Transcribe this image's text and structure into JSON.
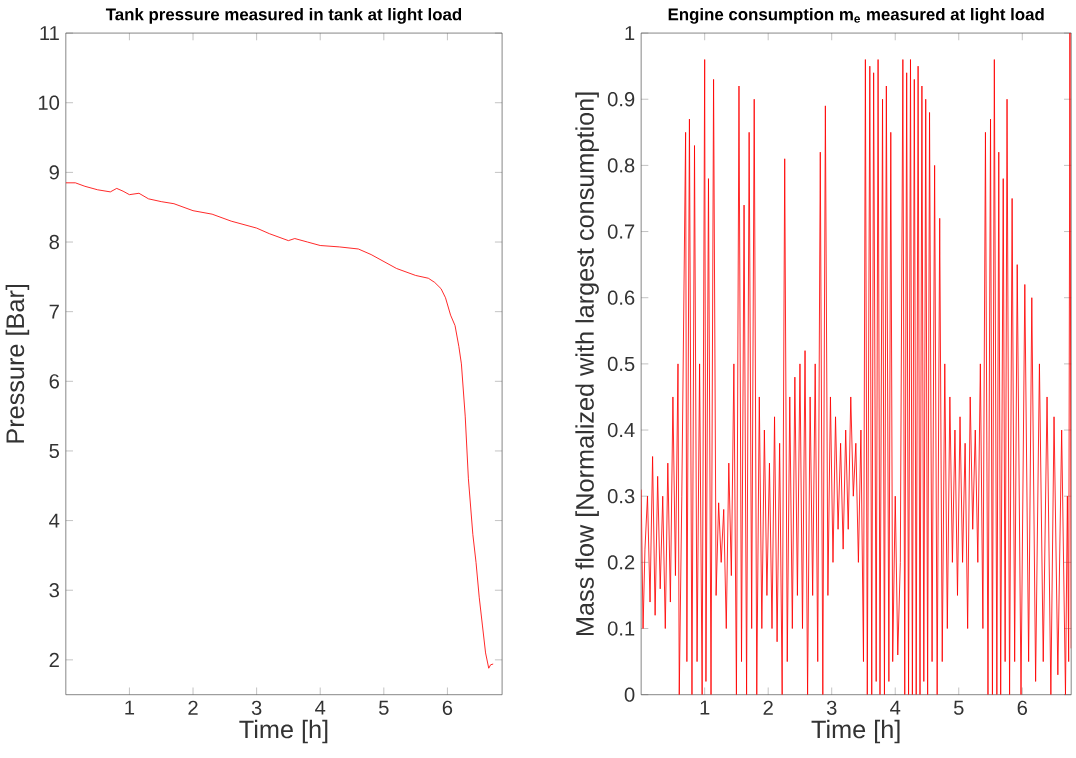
{
  "chart_data": [
    {
      "type": "line",
      "title": "Tank pressure measured in tank at light load",
      "xlabel": "Time [h]",
      "ylabel": "Pressure [Bar]",
      "xlim": [
        0,
        6.86
      ],
      "ylim": [
        1.5,
        11
      ],
      "xticks": [
        1,
        2,
        3,
        4,
        5,
        6
      ],
      "yticks": [
        2,
        3,
        4,
        5,
        6,
        7,
        8,
        9,
        10,
        11
      ],
      "grid": false,
      "marker": "none",
      "line_style": "solid",
      "series": [
        {
          "color": "#ff0000",
          "x": [
            0,
            0.15,
            0.3,
            0.5,
            0.7,
            0.8,
            0.9,
            1.0,
            1.15,
            1.3,
            1.5,
            1.7,
            2.0,
            2.3,
            2.6,
            3.0,
            3.2,
            3.5,
            3.6,
            3.8,
            4.0,
            4.3,
            4.6,
            4.8,
            5.0,
            5.2,
            5.5,
            5.7,
            5.8,
            5.9,
            5.97,
            6.05,
            6.12,
            6.18,
            6.22,
            6.28,
            6.33,
            6.4,
            6.45,
            6.5,
            6.55,
            6.6,
            6.65,
            6.68,
            6.72
          ],
          "values": [
            8.85,
            8.85,
            8.8,
            8.75,
            8.72,
            8.77,
            8.73,
            8.68,
            8.7,
            8.62,
            8.58,
            8.55,
            8.45,
            8.4,
            8.3,
            8.2,
            8.12,
            8.02,
            8.05,
            8.0,
            7.95,
            7.93,
            7.9,
            7.82,
            7.72,
            7.62,
            7.52,
            7.48,
            7.42,
            7.33,
            7.2,
            6.95,
            6.8,
            6.5,
            6.25,
            5.5,
            4.6,
            3.8,
            3.4,
            2.9,
            2.5,
            2.1,
            1.88,
            1.93,
            1.94
          ]
        }
      ]
    },
    {
      "type": "line",
      "title": "Engine consumption m$_{e}$ measured at light load",
      "xlabel": "Time [h]",
      "ylabel": "Mass flow [Normalized with largest consumption]",
      "xlim": [
        0,
        6.77
      ],
      "ylim": [
        0,
        1
      ],
      "xticks": [
        1,
        2,
        3,
        4,
        5,
        6
      ],
      "yticks": [
        0,
        0.1,
        0.2,
        0.3,
        0.4,
        0.5,
        0.6,
        0.7,
        0.8,
        0.9,
        1
      ],
      "grid": false,
      "marker": "none",
      "line_style": "solid",
      "series": [
        {
          "color": "#ff0000",
          "x": [
            0,
            0.03,
            0.06,
            0.1,
            0.14,
            0.18,
            0.22,
            0.26,
            0.3,
            0.34,
            0.38,
            0.42,
            0.46,
            0.5,
            0.54,
            0.58,
            0.6,
            0.64,
            0.7,
            0.72,
            0.76,
            0.8,
            0.84,
            0.88,
            0.92,
            0.96,
            1.0,
            1.02,
            1.06,
            1.1,
            1.14,
            1.18,
            1.22,
            1.26,
            1.3,
            1.34,
            1.38,
            1.42,
            1.46,
            1.5,
            1.54,
            1.58,
            1.62,
            1.66,
            1.7,
            1.74,
            1.78,
            1.82,
            1.86,
            1.9,
            1.94,
            1.98,
            2.02,
            2.06,
            2.1,
            2.14,
            2.18,
            2.22,
            2.26,
            2.3,
            2.34,
            2.38,
            2.42,
            2.46,
            2.5,
            2.54,
            2.58,
            2.62,
            2.66,
            2.7,
            2.74,
            2.78,
            2.82,
            2.86,
            2.9,
            2.94,
            2.98,
            3.02,
            3.06,
            3.1,
            3.14,
            3.18,
            3.22,
            3.26,
            3.3,
            3.34,
            3.38,
            3.42,
            3.46,
            3.5,
            3.53,
            3.56,
            3.6,
            3.63,
            3.66,
            3.7,
            3.73,
            3.76,
            3.8,
            3.83,
            3.86,
            3.9,
            3.93,
            3.96,
            4.0,
            4.04,
            4.08,
            4.12,
            4.15,
            4.18,
            4.21,
            4.24,
            4.27,
            4.3,
            4.33,
            4.36,
            4.39,
            4.42,
            4.45,
            4.48,
            4.51,
            4.54,
            4.58,
            4.62,
            4.66,
            4.7,
            4.74,
            4.78,
            4.82,
            4.86,
            4.9,
            4.94,
            4.98,
            5.02,
            5.06,
            5.1,
            5.14,
            5.18,
            5.22,
            5.26,
            5.3,
            5.34,
            5.38,
            5.42,
            5.46,
            5.5,
            5.53,
            5.56,
            5.6,
            5.63,
            5.66,
            5.7,
            5.73,
            5.76,
            5.8,
            5.84,
            5.88,
            5.92,
            5.98,
            6.04,
            6.1,
            6.15,
            6.21,
            6.27,
            6.33,
            6.39,
            6.45,
            6.5,
            6.56,
            6.62,
            6.68,
            6.71,
            6.73,
            6.75,
            6.77
          ],
          "values": [
            0.31,
            0.1,
            0.22,
            0.3,
            0.14,
            0.36,
            0.12,
            0.33,
            0.16,
            0.3,
            0.1,
            0.35,
            0.14,
            0.45,
            0.18,
            0.5,
            0.0,
            0.3,
            0.85,
            0.05,
            0.87,
            0.0,
            0.83,
            0.05,
            0.5,
            0.0,
            0.96,
            0.02,
            0.78,
            0.0,
            0.93,
            0.15,
            0.29,
            0.2,
            0.28,
            0.1,
            0.35,
            0.18,
            0.5,
            0.0,
            0.92,
            0.05,
            0.74,
            0.0,
            0.85,
            0.1,
            0.9,
            0.0,
            0.45,
            0.1,
            0.4,
            0.15,
            0.35,
            0.1,
            0.42,
            0.08,
            0.38,
            0.0,
            0.81,
            0.05,
            0.45,
            0.1,
            0.48,
            0.15,
            0.5,
            0.1,
            0.52,
            0.0,
            0.45,
            0.15,
            0.5,
            0.05,
            0.82,
            0.0,
            0.89,
            0.15,
            0.45,
            0.2,
            0.42,
            0.25,
            0.38,
            0.22,
            0.4,
            0.25,
            0.45,
            0.3,
            0.38,
            0.2,
            0.4,
            0.05,
            0.96,
            0.0,
            0.95,
            0.0,
            0.94,
            0.02,
            0.96,
            0.0,
            0.9,
            0.0,
            0.92,
            0.02,
            0.85,
            0.05,
            0.3,
            0.06,
            0.2,
            0.96,
            0.0,
            0.94,
            0.0,
            0.96,
            0.0,
            0.93,
            0.0,
            0.95,
            0.0,
            0.92,
            0.02,
            0.9,
            0.0,
            0.88,
            0.05,
            0.8,
            0.0,
            0.72,
            0.05,
            0.5,
            0.1,
            0.45,
            0.2,
            0.4,
            0.15,
            0.42,
            0.2,
            0.38,
            0.1,
            0.45,
            0.25,
            0.4,
            0.2,
            0.5,
            0.1,
            0.85,
            0.0,
            0.87,
            0.0,
            0.96,
            0.0,
            0.82,
            0.0,
            0.78,
            0.05,
            0.9,
            0.0,
            0.75,
            0.05,
            0.65,
            0.0,
            0.62,
            0.05,
            0.6,
            0.02,
            0.5,
            0.05,
            0.45,
            0.0,
            0.42,
            0.03,
            0.4,
            0.0,
            0.3,
            0.05,
            1.0,
            0.07
          ]
        }
      ]
    }
  ]
}
